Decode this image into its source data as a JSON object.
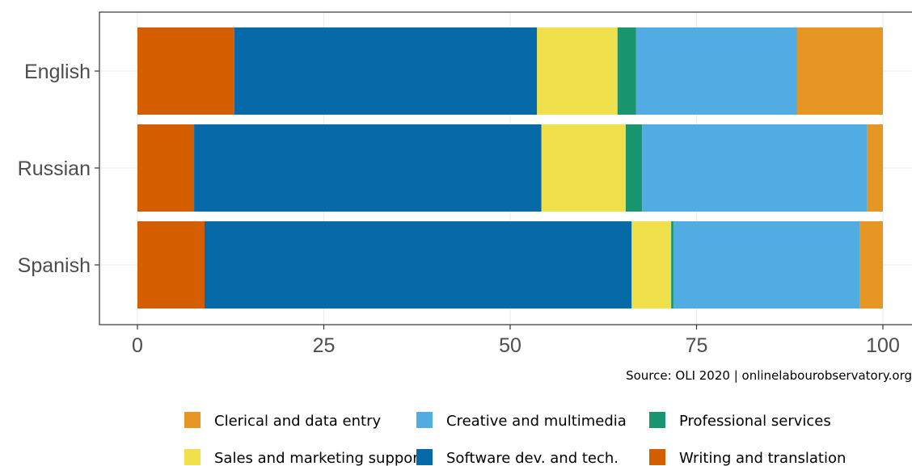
{
  "chart_data": {
    "type": "bar",
    "orientation": "horizontal",
    "stacked": true,
    "categories": [
      "English",
      "Russian",
      "Spanish"
    ],
    "xlim": [
      0,
      100
    ],
    "xticks": [
      "0",
      "25",
      "50",
      "75",
      "100"
    ],
    "grid": true,
    "legend_position": "bottom",
    "caption": "Source: OLI 2020 | onlinelabourobservatory.org",
    "series": [
      {
        "name": "Writing and translation",
        "color": "#D55E00",
        "values": [
          13.0,
          7.6,
          9.0
        ]
      },
      {
        "name": "Software dev. and tech.",
        "color": "#0769A8",
        "values": [
          40.6,
          46.6,
          57.3
        ]
      },
      {
        "name": "Sales and marketing support",
        "color": "#F0E04B",
        "values": [
          10.8,
          11.3,
          5.3
        ]
      },
      {
        "name": "Professional services",
        "color": "#199670",
        "values": [
          2.5,
          2.2,
          0.3
        ]
      },
      {
        "name": "Creative and multimedia",
        "color": "#51ACE4",
        "values": [
          21.6,
          30.2,
          25.0
        ]
      },
      {
        "name": "Clerical and data entry",
        "color": "#E69624",
        "values": [
          11.5,
          2.1,
          3.1
        ]
      }
    ],
    "legend": [
      {
        "label": "Clerical and data entry",
        "color": "#E69624"
      },
      {
        "label": "Creative and multimedia",
        "color": "#51ACE4"
      },
      {
        "label": "Professional services",
        "color": "#199670"
      },
      {
        "label": "Sales and marketing support",
        "color": "#F0E04B"
      },
      {
        "label": "Software dev. and tech.",
        "color": "#0769A8"
      },
      {
        "label": "Writing and translation",
        "color": "#D55E00"
      }
    ]
  }
}
